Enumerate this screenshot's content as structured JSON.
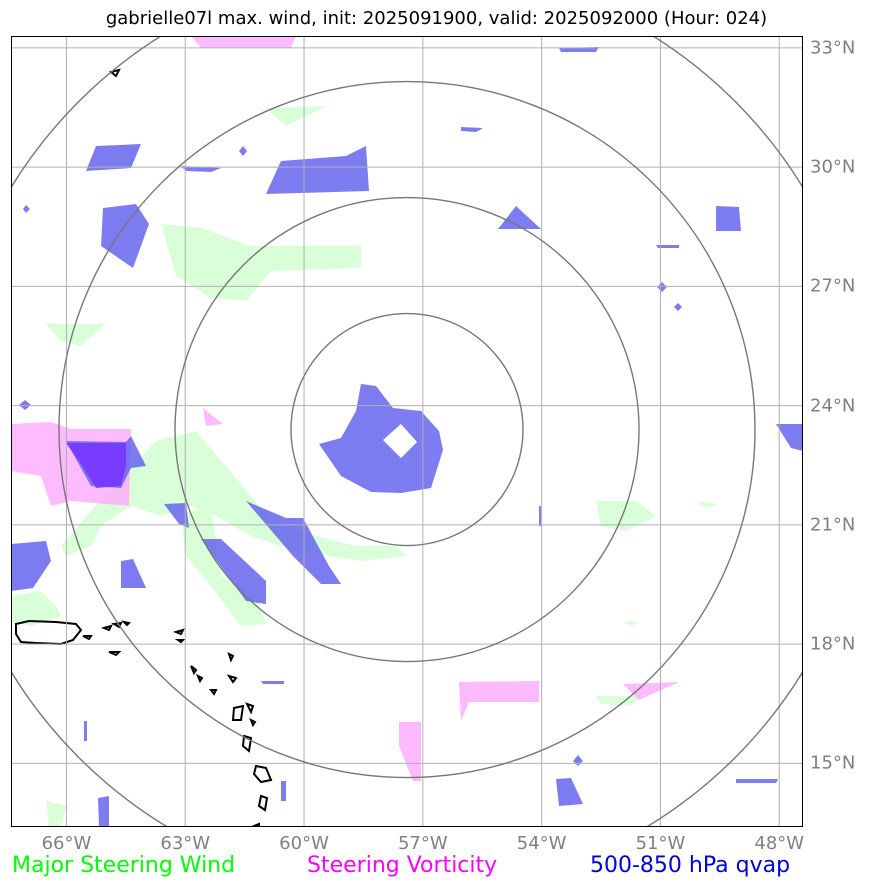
{
  "title": "gabrielle07l max. wind, init: 2025091900, valid: 2025092000 (Hour: 024)",
  "map": {
    "lat_labels": [
      "33°N",
      "30°N",
      "27°N",
      "24°N",
      "21°N",
      "18°N",
      "15°N"
    ],
    "lon_labels": [
      "66°W",
      "63°W",
      "60°W",
      "57°W",
      "54°W",
      "51°W",
      "48°W"
    ],
    "extent": {
      "lon_min": -67.4,
      "lon_max": -47.4,
      "lat_min": 13.4,
      "lat_max": 33.3
    },
    "storm_center": {
      "lon": -57.4,
      "lat": 23.4
    },
    "range_rings": 4
  },
  "legend": {
    "wind": {
      "label": "Major Steering Wind",
      "color": "#00ff00"
    },
    "vorticity": {
      "label": "Steering Vorticity",
      "color": "#ff00ff"
    },
    "qvap": {
      "label": "500-850 hPa qvap",
      "color": "#0000dd"
    }
  },
  "colors": {
    "wind_fill": "#ccffcc",
    "vorticity_fill": "#ffaaff",
    "qvap_fill": "#6666ee",
    "grid": "#b0b0b0",
    "ring": "#777777",
    "coast": "#000000"
  }
}
